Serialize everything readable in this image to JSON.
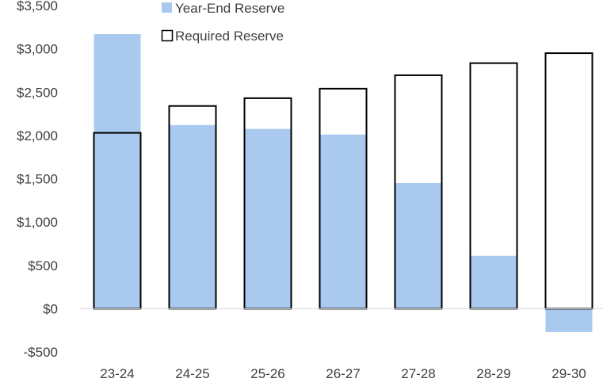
{
  "chart_data": {
    "type": "bar",
    "categories": [
      "23-24",
      "24-25",
      "25-26",
      "26-27",
      "27-28",
      "28-29",
      "29-30"
    ],
    "series": [
      {
        "name": "Year-End Reserve",
        "style": "filled",
        "color": "#a9c9ef",
        "values": [
          3170,
          2120,
          2075,
          2010,
          1450,
          610,
          -270
        ]
      },
      {
        "name": "Required Reserve",
        "style": "outline",
        "color": "#000000",
        "values": [
          2030,
          2340,
          2430,
          2540,
          2695,
          2835,
          2950
        ]
      }
    ],
    "ylim": [
      -500,
      3500
    ],
    "yticks": [
      -500,
      0,
      500,
      1000,
      1500,
      2000,
      2500,
      3000,
      3500
    ],
    "ytick_labels": [
      "-$500",
      "$0",
      "$500",
      "$1,000",
      "$1,500",
      "$2,000",
      "$2,500",
      "$3,000",
      "$3,500"
    ],
    "legend_position": "top-center",
    "grid": false,
    "title": "",
    "xlabel": "",
    "ylabel": ""
  }
}
